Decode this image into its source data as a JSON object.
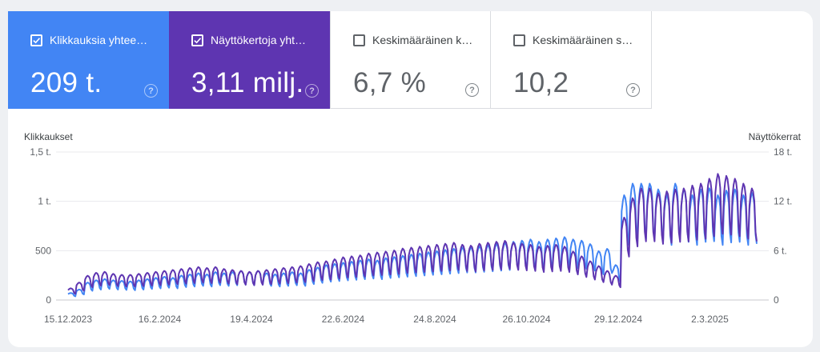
{
  "metrics": [
    {
      "label": "Klikkauksia yhtee…",
      "value": "209 t.",
      "checked": true
    },
    {
      "label": "Näyttökertoja yht…",
      "value": "3,11 milj.",
      "checked": true
    },
    {
      "label": "Keskimääräinen k…",
      "value": "6,7 %",
      "checked": false
    },
    {
      "label": "Keskimääräinen s…",
      "value": "10,2",
      "checked": false
    }
  ],
  "help_symbol": "?",
  "chart": {
    "left_axis_title": "Klikkaukset",
    "right_axis_title": "Näyttökerrat"
  },
  "colors": {
    "clicks": "#4285f4",
    "impressions": "#5e35b1",
    "grid": "#e8eaed"
  },
  "chart_data": {
    "type": "line",
    "x_tick_labels": [
      "15.12.2023",
      "16.2.2024",
      "19.4.2024",
      "22.6.2024",
      "24.8.2024",
      "26.10.2024",
      "29.12.2024",
      "2.3.2025"
    ],
    "y_left_ticks": [
      "0",
      "500",
      "1 t.",
      "1,5 t."
    ],
    "y_right_ticks": [
      "0",
      "6 t.",
      "12 t.",
      "18 t."
    ],
    "ylim_left": [
      0,
      1500
    ],
    "ylim_right": [
      0,
      18000
    ],
    "x_start": "2023-12-15",
    "x_end": "2025-04-28",
    "series": [
      {
        "name": "Klikkaukset",
        "axis": "left",
        "color": "#4285f4",
        "weekly_base": [
          60,
          90,
          150,
          170,
          180,
          170,
          165,
          160,
          170,
          180,
          190,
          200,
          190,
          210,
          220,
          230,
          220,
          240,
          230,
          240,
          250,
          240,
          250,
          230,
          220,
          230,
          240,
          230,
          260,
          280,
          300,
          310,
          320,
          330,
          340,
          350,
          340,
          360,
          370,
          380,
          390,
          400,
          410,
          420,
          430,
          440,
          450,
          450,
          460,
          470,
          480,
          490,
          500,
          510,
          520,
          500,
          520,
          530,
          540,
          520,
          510,
          480,
          420,
          440,
          300,
          900,
          1000,
          1000,
          1000,
          950,
          900,
          1000,
          950,
          900,
          950,
          960,
          900,
          940,
          950,
          900,
          920
        ]
      },
      {
        "name": "Näyttökerrat",
        "axis": "right",
        "color": "#5e35b1",
        "weekly_base": [
          1200,
          1800,
          2500,
          2800,
          2900,
          2700,
          2600,
          2600,
          2700,
          2800,
          2900,
          3000,
          3100,
          3200,
          3300,
          3400,
          3300,
          3400,
          3200,
          3100,
          3000,
          2900,
          3000,
          3100,
          3200,
          3300,
          3400,
          3500,
          3700,
          3900,
          4000,
          4200,
          4400,
          4500,
          4600,
          4800,
          4900,
          5000,
          5100,
          5300,
          5400,
          5500,
          5600,
          5700,
          5800,
          5900,
          5700,
          5600,
          5800,
          5900,
          6000,
          6100,
          5900,
          5800,
          5700,
          5500,
          5600,
          5700,
          5500,
          5000,
          4500,
          4000,
          3500,
          3000,
          2500,
          8500,
          10500,
          11500,
          11500,
          11000,
          11200,
          11400,
          11500,
          11800,
          12000,
          12500,
          13000,
          12800,
          12500,
          12000,
          11500
        ]
      }
    ]
  }
}
